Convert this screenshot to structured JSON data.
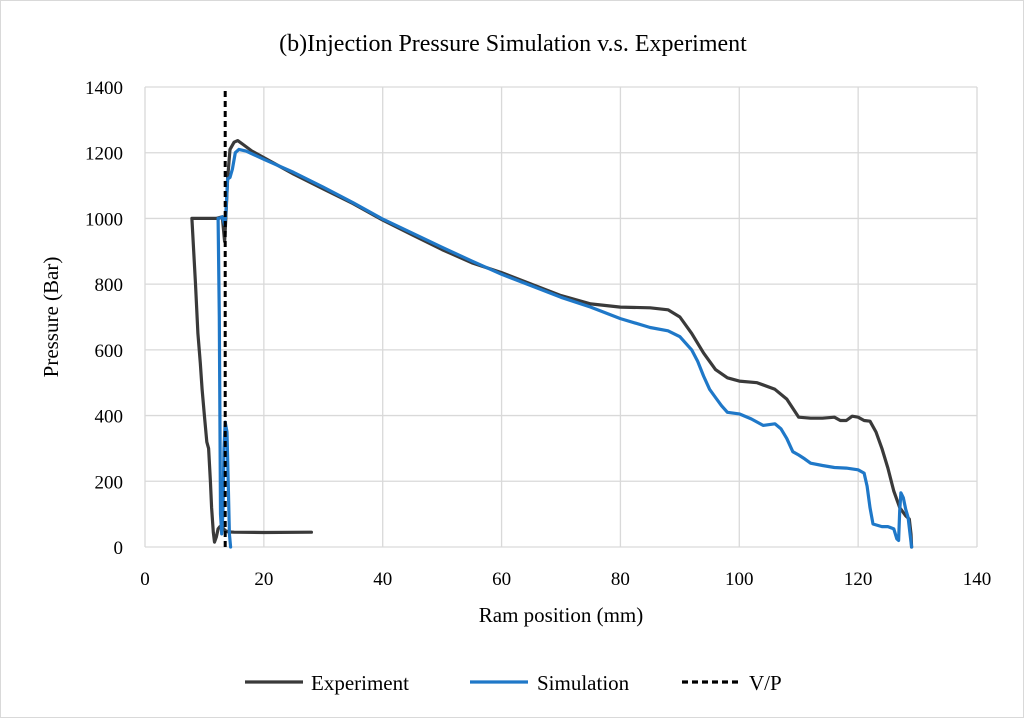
{
  "chart_data": {
    "type": "line",
    "title": "(b)Injection Pressure Simulation v.s. Experiment",
    "xlabel": "Ram position (mm)",
    "ylabel": "Pressure (Bar)",
    "xlim": [
      0,
      140
    ],
    "ylim": [
      0,
      1400
    ],
    "xticks": [
      0,
      20,
      40,
      60,
      80,
      100,
      120,
      140
    ],
    "yticks": [
      0,
      200,
      400,
      600,
      800,
      1000,
      1200,
      1400
    ],
    "grid": true,
    "legend_position": "bottom",
    "series": [
      {
        "name": "Experiment",
        "color": "#3a3a3a",
        "style": "solid",
        "points": [
          [
            28,
            45
          ],
          [
            20,
            44
          ],
          [
            15,
            45
          ],
          [
            14,
            46
          ],
          [
            13.5,
            50
          ],
          [
            13,
            60
          ],
          [
            12.6,
            62
          ],
          [
            12.3,
            55
          ],
          [
            12,
            30
          ],
          [
            11.7,
            15
          ],
          [
            11.5,
            45
          ],
          [
            11.2,
            120
          ],
          [
            11,
            200
          ],
          [
            10.7,
            300
          ],
          [
            10.4,
            320
          ],
          [
            10,
            400
          ],
          [
            9.6,
            480
          ],
          [
            9.3,
            560
          ],
          [
            8.9,
            650
          ],
          [
            8.5,
            800
          ],
          [
            8.2,
            900
          ],
          [
            7.9,
            1000
          ],
          [
            10,
            1000
          ],
          [
            12,
            1000
          ],
          [
            13,
            1005
          ],
          [
            13.4,
            930
          ],
          [
            13.6,
            1000
          ],
          [
            13.9,
            1120
          ],
          [
            14.3,
            1210
          ],
          [
            15,
            1232
          ],
          [
            15.6,
            1237
          ],
          [
            16.5,
            1225
          ],
          [
            18,
            1205
          ],
          [
            20,
            1185
          ],
          [
            22,
            1165
          ],
          [
            25,
            1135
          ],
          [
            30,
            1090
          ],
          [
            35,
            1045
          ],
          [
            40,
            995
          ],
          [
            45,
            950
          ],
          [
            50,
            905
          ],
          [
            55,
            865
          ],
          [
            60,
            835
          ],
          [
            65,
            800
          ],
          [
            70,
            765
          ],
          [
            75,
            740
          ],
          [
            80,
            730
          ],
          [
            85,
            728
          ],
          [
            88,
            722
          ],
          [
            90,
            700
          ],
          [
            92,
            650
          ],
          [
            94,
            590
          ],
          [
            96,
            540
          ],
          [
            98,
            515
          ],
          [
            100,
            505
          ],
          [
            103,
            500
          ],
          [
            106,
            480
          ],
          [
            108,
            450
          ],
          [
            110,
            395
          ],
          [
            112,
            392
          ],
          [
            114,
            392
          ],
          [
            116,
            395
          ],
          [
            117,
            385
          ],
          [
            118,
            385
          ],
          [
            119,
            398
          ],
          [
            120,
            395
          ],
          [
            121,
            385
          ],
          [
            122,
            383
          ],
          [
            123,
            350
          ],
          [
            124,
            300
          ],
          [
            125,
            240
          ],
          [
            126,
            170
          ],
          [
            127,
            120
          ],
          [
            128,
            95
          ],
          [
            128.6,
            85
          ],
          [
            128.9,
            40
          ],
          [
            129,
            0
          ]
        ]
      },
      {
        "name": "Simulation",
        "color": "#1f78c8",
        "style": "solid",
        "points": [
          [
            14.4,
            0
          ],
          [
            14.2,
            40
          ],
          [
            14,
            200
          ],
          [
            13.8,
            350
          ],
          [
            13.5,
            380
          ],
          [
            13.3,
            300
          ],
          [
            13.1,
            100
          ],
          [
            12.9,
            40
          ],
          [
            12.7,
            100
          ],
          [
            12.5,
            700
          ],
          [
            12.3,
            1000
          ],
          [
            12.5,
            1000
          ],
          [
            13,
            1005
          ],
          [
            13.4,
            980
          ],
          [
            13.6,
            1010
          ],
          [
            13.9,
            1120
          ],
          [
            14.3,
            1125
          ],
          [
            14.7,
            1150
          ],
          [
            15.2,
            1200
          ],
          [
            15.8,
            1210
          ],
          [
            17,
            1205
          ],
          [
            20,
            1180
          ],
          [
            25,
            1140
          ],
          [
            30,
            1095
          ],
          [
            35,
            1048
          ],
          [
            40,
            998
          ],
          [
            45,
            955
          ],
          [
            50,
            912
          ],
          [
            55,
            870
          ],
          [
            60,
            830
          ],
          [
            65,
            795
          ],
          [
            70,
            760
          ],
          [
            75,
            730
          ],
          [
            80,
            695
          ],
          [
            85,
            668
          ],
          [
            88,
            658
          ],
          [
            90,
            640
          ],
          [
            92,
            600
          ],
          [
            93,
            565
          ],
          [
            94,
            520
          ],
          [
            95,
            480
          ],
          [
            96,
            455
          ],
          [
            97,
            430
          ],
          [
            98,
            410
          ],
          [
            100,
            405
          ],
          [
            102,
            390
          ],
          [
            104,
            370
          ],
          [
            106,
            375
          ],
          [
            107,
            360
          ],
          [
            108,
            330
          ],
          [
            109,
            290
          ],
          [
            110,
            280
          ],
          [
            111,
            268
          ],
          [
            112,
            255
          ],
          [
            114,
            248
          ],
          [
            116,
            242
          ],
          [
            118,
            240
          ],
          [
            120,
            235
          ],
          [
            121,
            225
          ],
          [
            121.5,
            185
          ],
          [
            122,
            120
          ],
          [
            122.5,
            70
          ],
          [
            124,
            62
          ],
          [
            125,
            62
          ],
          [
            126,
            55
          ],
          [
            126.5,
            25
          ],
          [
            126.8,
            20
          ],
          [
            127,
            110
          ],
          [
            127.2,
            165
          ],
          [
            127.6,
            150
          ],
          [
            128,
            115
          ],
          [
            128.4,
            90
          ],
          [
            128.8,
            30
          ],
          [
            129,
            0
          ]
        ]
      },
      {
        "name": "V/P",
        "color": "#000000",
        "style": "dashed",
        "points": [
          [
            13.5,
            0
          ],
          [
            13.5,
            1400
          ]
        ]
      }
    ]
  }
}
